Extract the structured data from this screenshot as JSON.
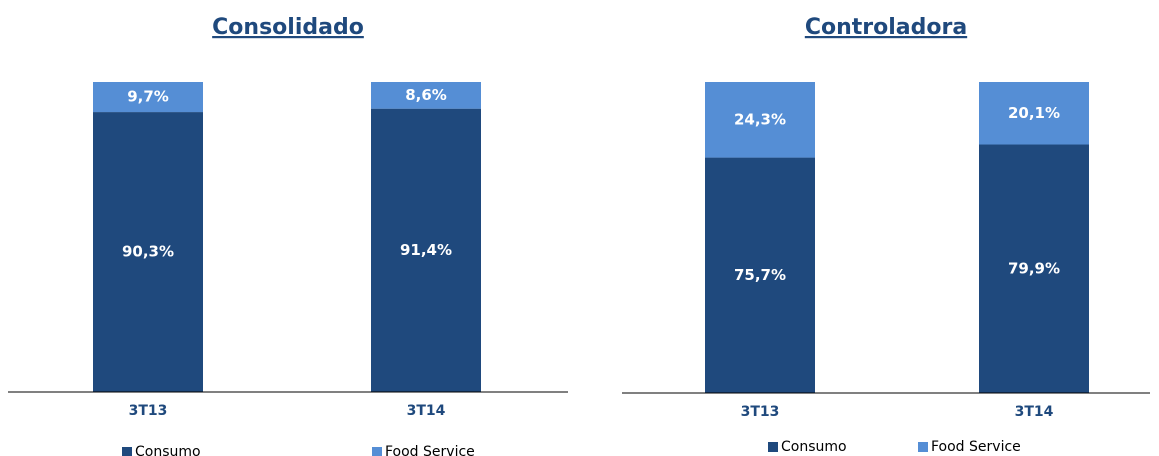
{
  "chart_data": [
    {
      "type": "bar",
      "stacked": true,
      "title": "Consolidado",
      "categories": [
        "3T13",
        "3T14"
      ],
      "ylim": [
        0,
        100
      ],
      "series": [
        {
          "name": "Consumo",
          "color": "#1f497d",
          "values": [
            90.3,
            91.4
          ],
          "value_labels": [
            "90,3%",
            "91,4%"
          ]
        },
        {
          "name": "Food Service",
          "color": "#558ed5",
          "values": [
            9.7,
            8.6
          ],
          "value_labels": [
            "9,7%",
            "8,6%"
          ]
        }
      ]
    },
    {
      "type": "bar",
      "stacked": true,
      "title": "Controladora",
      "categories": [
        "3T13",
        "3T14"
      ],
      "ylim": [
        0,
        100
      ],
      "series": [
        {
          "name": "Consumo",
          "color": "#1f497d",
          "values": [
            75.7,
            79.9
          ],
          "value_labels": [
            "75,7%",
            "79,9%"
          ]
        },
        {
          "name": "Food Service",
          "color": "#558ed5",
          "values": [
            24.3,
            20.1
          ],
          "value_labels": [
            "24,3%",
            "20,1%"
          ]
        }
      ]
    }
  ]
}
